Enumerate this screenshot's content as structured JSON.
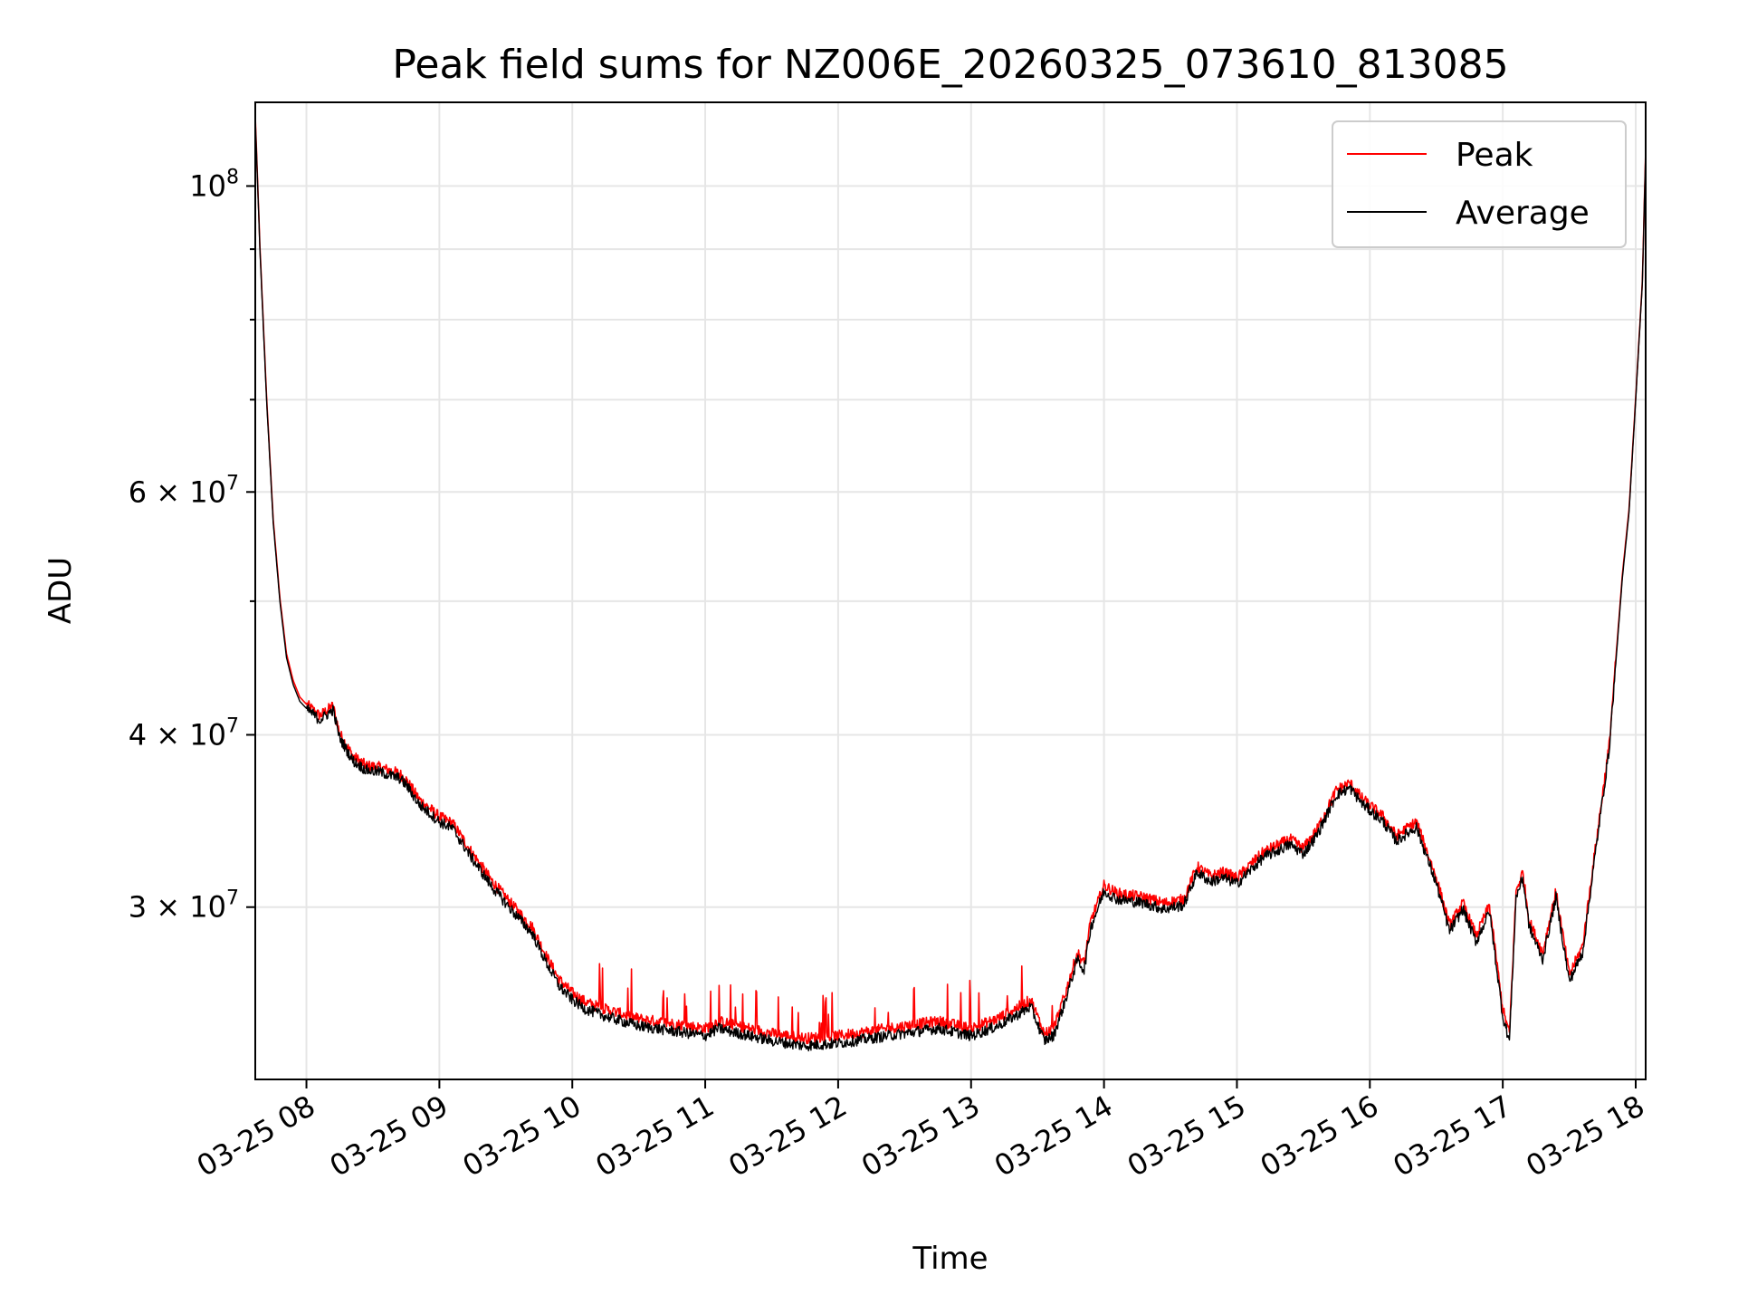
{
  "chart_data": {
    "type": "line",
    "title": "Peak field sums for NZ006E_20260325_073610_813085",
    "xlabel": "Time",
    "ylabel": "ADU",
    "yscale": "log",
    "ylim": [
      22500000,
      115000000
    ],
    "xlim_hours": [
      7.615,
      18.075
    ],
    "x_ticks": [
      {
        "h": 8,
        "label": "03-25 08"
      },
      {
        "h": 9,
        "label": "03-25 09"
      },
      {
        "h": 10,
        "label": "03-25 10"
      },
      {
        "h": 11,
        "label": "03-25 11"
      },
      {
        "h": 12,
        "label": "03-25 12"
      },
      {
        "h": 13,
        "label": "03-25 13"
      },
      {
        "h": 14,
        "label": "03-25 14"
      },
      {
        "h": 15,
        "label": "03-25 15"
      },
      {
        "h": 16,
        "label": "03-25 16"
      },
      {
        "h": 17,
        "label": "03-25 17"
      },
      {
        "h": 18,
        "label": "03-25 18"
      }
    ],
    "y_ticks": [
      {
        "value": 100000000,
        "base": "10",
        "exp": "8"
      },
      {
        "value": 60000000,
        "base": "6 × 10",
        "exp": "7"
      },
      {
        "value": 40000000,
        "base": "4 × 10",
        "exp": "7"
      },
      {
        "value": 30000000,
        "base": "3 × 10",
        "exp": "7"
      }
    ],
    "y_minor_ticks": [
      50000000,
      70000000,
      80000000,
      90000000
    ],
    "grid": true,
    "legend_position": "top-right",
    "legend": {
      "peak_label": "Peak",
      "average_label": "Average"
    },
    "series": [
      {
        "name": "Average",
        "color": "#000000",
        "hours": [
          7.615,
          7.65,
          7.7,
          7.75,
          7.8,
          7.85,
          7.9,
          7.95,
          8.0,
          8.1,
          8.2,
          8.25,
          8.35,
          8.45,
          8.55,
          8.7,
          8.75,
          8.85,
          9.0,
          9.1,
          9.25,
          9.4,
          9.55,
          9.7,
          9.8,
          9.9,
          10.0,
          10.1,
          10.25,
          10.5,
          10.75,
          11.0,
          11.1,
          11.25,
          11.5,
          11.75,
          12.0,
          12.25,
          12.5,
          12.75,
          13.0,
          13.2,
          13.45,
          13.55,
          13.62,
          13.7,
          13.8,
          13.85,
          13.9,
          14.0,
          14.1,
          14.3,
          14.45,
          14.6,
          14.7,
          14.8,
          14.9,
          15.0,
          15.2,
          15.4,
          15.5,
          15.6,
          15.75,
          15.85,
          15.95,
          16.1,
          16.2,
          16.35,
          16.5,
          16.6,
          16.7,
          16.8,
          16.9,
          17.0,
          17.05,
          17.1,
          17.15,
          17.2,
          17.3,
          17.4,
          17.5,
          17.6,
          17.7,
          17.8,
          17.9,
          17.95,
          18.0,
          18.05,
          18.075
        ],
        "values": [
          112000000,
          90000000,
          70000000,
          57000000,
          50000000,
          45500000,
          43500000,
          42300000,
          41800000,
          41000000,
          41700000,
          39800000,
          38300000,
          37700000,
          37600000,
          37200000,
          36800000,
          35600000,
          34600000,
          34200000,
          32500000,
          31000000,
          29800000,
          28700000,
          27400000,
          26300000,
          25700000,
          25300000,
          25000000,
          24600000,
          24400000,
          24200000,
          24500000,
          24300000,
          24000000,
          23800000,
          23900000,
          24100000,
          24300000,
          24500000,
          24200000,
          24600000,
          25400000,
          24000000,
          24200000,
          25500000,
          27500000,
          27000000,
          29000000,
          30800000,
          30400000,
          30200000,
          29900000,
          30100000,
          31800000,
          31300000,
          31500000,
          31200000,
          32600000,
          33300000,
          32800000,
          33800000,
          36200000,
          36600000,
          35600000,
          34600000,
          33500000,
          34300000,
          31200000,
          28800000,
          29900000,
          28300000,
          29800000,
          25000000,
          24000000,
          30500000,
          31500000,
          29000000,
          27500000,
          30500000,
          26500000,
          27800000,
          33000000,
          39000000,
          52000000,
          58000000,
          70000000,
          85000000,
          106000000
        ]
      },
      {
        "name": "Peak",
        "color": "#ff0000",
        "hours": [
          7.615,
          7.65,
          7.7,
          7.75,
          7.8,
          7.85,
          7.9,
          7.95,
          8.0,
          8.1,
          8.2,
          8.25,
          8.35,
          8.45,
          8.55,
          8.7,
          8.75,
          8.85,
          9.0,
          9.1,
          9.25,
          9.4,
          9.55,
          9.7,
          9.8,
          9.9,
          10.0,
          10.1,
          10.25,
          10.5,
          10.75,
          11.0,
          11.1,
          11.25,
          11.5,
          11.75,
          12.0,
          12.25,
          12.5,
          12.75,
          13.0,
          13.2,
          13.45,
          13.55,
          13.62,
          13.7,
          13.8,
          13.85,
          13.9,
          14.0,
          14.1,
          14.3,
          14.45,
          14.6,
          14.7,
          14.8,
          14.9,
          15.0,
          15.2,
          15.4,
          15.5,
          15.6,
          15.75,
          15.85,
          15.95,
          16.1,
          16.2,
          16.35,
          16.5,
          16.6,
          16.7,
          16.8,
          16.9,
          17.0,
          17.05,
          17.1,
          17.15,
          17.2,
          17.3,
          17.4,
          17.5,
          17.6,
          17.7,
          17.8,
          17.9,
          17.95,
          18.0,
          18.05,
          18.075
        ],
        "values": [
          112500000,
          90500000,
          70400000,
          57300000,
          50300000,
          45800000,
          43800000,
          42600000,
          42100000,
          41300000,
          42000000,
          40100000,
          38600000,
          38000000,
          37900000,
          37500000,
          37100000,
          35900000,
          34900000,
          34500000,
          32800000,
          31300000,
          30100000,
          29000000,
          27700000,
          26600000,
          26000000,
          25600000,
          25300000,
          24900000,
          24700000,
          24500000,
          24800000,
          24600000,
          24300000,
          24100000,
          24200000,
          24400000,
          24600000,
          24800000,
          24500000,
          24900000,
          25700000,
          24300000,
          24500000,
          25800000,
          27800000,
          27300000,
          29300000,
          31100000,
          30700000,
          30500000,
          30200000,
          30400000,
          32100000,
          31600000,
          31800000,
          31500000,
          32900000,
          33600000,
          33100000,
          34100000,
          36500000,
          36900000,
          35900000,
          34900000,
          33800000,
          34600000,
          31500000,
          29100000,
          30200000,
          28600000,
          30100000,
          25300000,
          24300000,
          30800000,
          31800000,
          29300000,
          27800000,
          30800000,
          26800000,
          28100000,
          33300000,
          39300000,
          52300000,
          58300000,
          70300000,
          85300000,
          106300000
        ]
      }
    ]
  }
}
